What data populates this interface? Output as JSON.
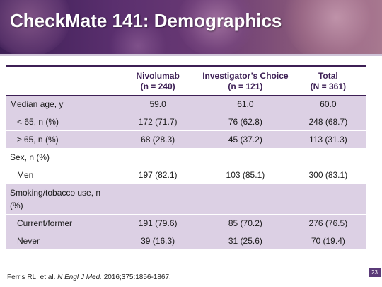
{
  "slide": {
    "title": "CheckMate 141: Demographics",
    "page_number": "23",
    "citation": {
      "authors": "Ferris RL, et al. ",
      "journal": "N Engl J Med.",
      "details": " 2016;375:1856-1867."
    }
  },
  "table": {
    "headers": [
      {
        "line1": "",
        "line2": ""
      },
      {
        "line1": "Nivolumab",
        "line2": "(n = 240)"
      },
      {
        "line1": "Investigator’s Choice",
        "line2": "(n = 121)"
      },
      {
        "line1": "Total",
        "line2": "(N = 361)"
      }
    ],
    "rows": [
      {
        "label": "Median age, y",
        "values": [
          "59.0",
          "61.0",
          "60.0"
        ]
      },
      {
        "label": "< 65, n (%)",
        "values": [
          "172 (71.7)",
          "76 (62.8)",
          "248 (68.7)"
        ]
      },
      {
        "label": "≥ 65, n (%)",
        "values": [
          "68 (28.3)",
          "45 (37.2)",
          "113 (31.3)"
        ]
      },
      {
        "label": "Sex, n (%)",
        "values": [
          "",
          "",
          ""
        ]
      },
      {
        "label": "Men",
        "values": [
          "197 (82.1)",
          "103 (85.1)",
          "300 (83.1)"
        ]
      },
      {
        "label": "Smoking/tobacco use, n (%)",
        "values": [
          "",
          "",
          ""
        ]
      },
      {
        "label": "Current/former",
        "values": [
          "191 (79.6)",
          "85 (70.2)",
          "276 (76.5)"
        ]
      },
      {
        "label": "Never",
        "values": [
          "39 (16.3)",
          "31 (25.6)",
          "70 (19.4)"
        ]
      }
    ]
  },
  "colors": {
    "accent": "#3d1f55",
    "row_shade": "#dcd0e4"
  }
}
